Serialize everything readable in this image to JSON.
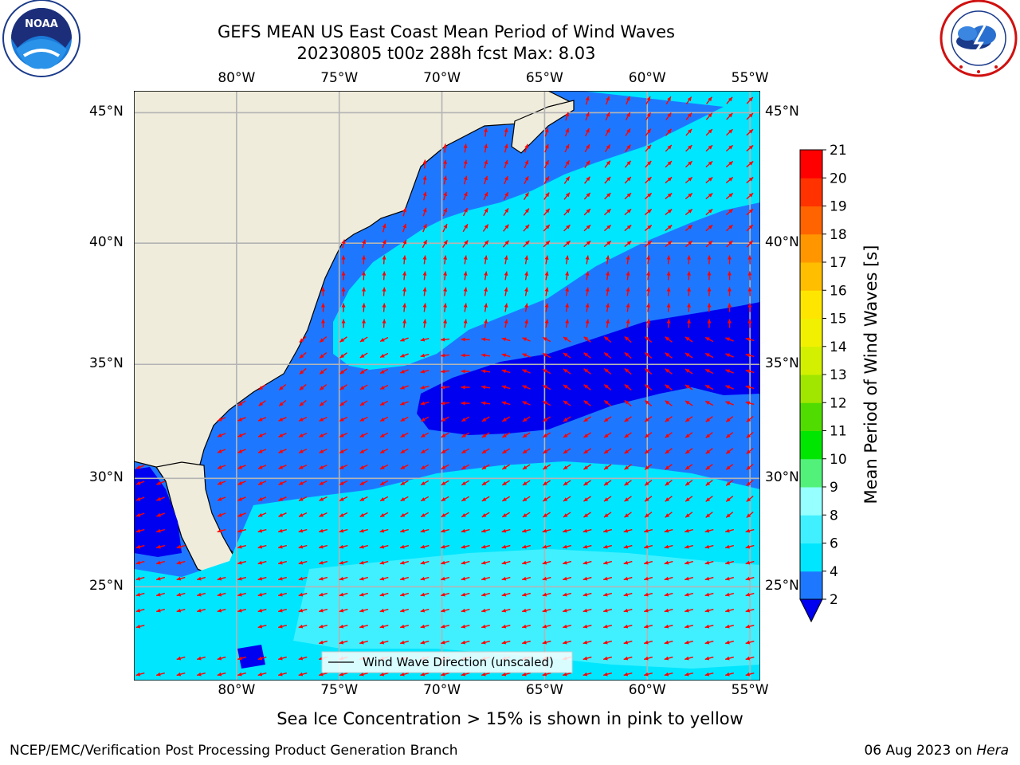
{
  "header": {
    "title_line1": "GEFS MEAN US East Coast Mean Period of Wind Waves",
    "title_line2": "20230805 t00z 288h fcst   Max: 8.03",
    "noaa_logo_text": "NOAA",
    "noaa_ring_text": "NATIONAL OCEANIC AND ATMOSPHERIC ADMINISTRATION · U.S. DEPARTMENT OF COMMERCE",
    "nws_ring_text": "NATIONAL WEATHER SERVICE"
  },
  "map": {
    "lon_labels": [
      "80°W",
      "75°W",
      "70°W",
      "65°W",
      "60°W",
      "55°W"
    ],
    "lat_labels": [
      "45°N",
      "40°N",
      "35°N",
      "30°N",
      "25°N"
    ],
    "legend_label": "Wind Wave Direction (unscaled)",
    "extent": {
      "lon": [
        -85,
        -54.5
      ],
      "lat": [
        20.5,
        45.8
      ]
    }
  },
  "colorbar": {
    "label": "Mean Period of Wind Waves [s]",
    "ticks": [
      "2",
      "4",
      "6",
      "8",
      "9",
      "10",
      "11",
      "12",
      "13",
      "14",
      "15",
      "16",
      "17",
      "18",
      "19",
      "20",
      "21"
    ],
    "colors": [
      "#0000f0",
      "#1e78ff",
      "#00e6ff",
      "#40f0ff",
      "#96ffff",
      "#52f27a",
      "#00e600",
      "#50dc00",
      "#a0e600",
      "#d2f000",
      "#f0f000",
      "#ffe600",
      "#ffbe00",
      "#ff9600",
      "#ff6400",
      "#ff3200",
      "#ff0000"
    ],
    "under_color": "#0000f0"
  },
  "footer": {
    "sea_ice_note": "Sea Ice Concentration > 15% is shown in pink to yellow",
    "branch": "NCEP/EMC/Verification Post Processing Product Generation Branch",
    "date": "06 Aug 2023 on ",
    "machine": "Hera"
  },
  "colors": {
    "land": "#efecdc",
    "ocean_mid": "#1e78ff",
    "ocean_light": "#00e6ff",
    "ocean_pale": "#40f0ff",
    "ocean_dark": "#0000f0",
    "arrow": "#ff0000",
    "grid": "#b4b4b4"
  }
}
